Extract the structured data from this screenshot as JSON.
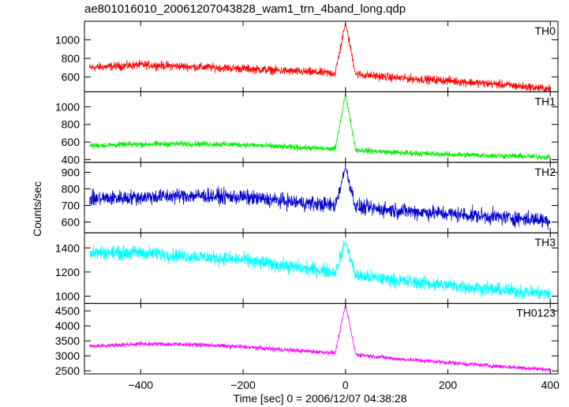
{
  "title": "ae801016010_20061207043828_wam1_trn_4band_long.qdp",
  "xlabel": "Time [sec] 0 = 2006/12/07 04:38:28",
  "ylabel": "Counts/sec",
  "chart_data": {
    "type": "line",
    "title": "ae801016010_20061207043828_wam1_trn_4band_long.qdp",
    "xlabel": "Time [sec] 0 = 2006/12/07 04:38:28",
    "ylabel": "Counts/sec",
    "xlim": [
      -510,
      415
    ],
    "xticks": [
      -400,
      -200,
      0,
      200,
      400
    ],
    "grid": false,
    "panels": [
      {
        "name": "TH0",
        "color": "#ff0000",
        "ylim": [
          440,
          1200
        ],
        "yticks": [
          600,
          800,
          1000
        ],
        "x": [
          -500,
          -400,
          -300,
          -200,
          -100,
          -20,
          0,
          20,
          100,
          200,
          300,
          400
        ],
        "y": [
          700,
          730,
          710,
          690,
          660,
          640,
          1180,
          630,
          590,
          560,
          520,
          470
        ],
        "noise": 35
      },
      {
        "name": "TH1",
        "color": "#00ee00",
        "ylim": [
          370,
          1170
        ],
        "yticks": [
          400,
          600,
          800,
          1000
        ],
        "x": [
          -500,
          -400,
          -300,
          -200,
          -100,
          -20,
          0,
          20,
          100,
          200,
          300,
          400
        ],
        "y": [
          560,
          575,
          580,
          570,
          540,
          520,
          1150,
          510,
          480,
          460,
          445,
          430
        ],
        "noise": 25
      },
      {
        "name": "TH2",
        "color": "#0000cc",
        "ylim": [
          535,
          960
        ],
        "yticks": [
          600,
          700,
          800,
          900
        ],
        "x": [
          -500,
          -400,
          -300,
          -200,
          -100,
          -20,
          0,
          20,
          100,
          200,
          300,
          400
        ],
        "y": [
          740,
          750,
          760,
          750,
          720,
          700,
          930,
          690,
          670,
          650,
          630,
          610
        ],
        "noise": 35
      },
      {
        "name": "TH3",
        "color": "#00ffff",
        "ylim": [
          940,
          1525
        ],
        "yticks": [
          1000,
          1200,
          1400
        ],
        "x": [
          -500,
          -400,
          -300,
          -200,
          -100,
          -20,
          0,
          20,
          100,
          200,
          300,
          400
        ],
        "y": [
          1360,
          1360,
          1330,
          1300,
          1240,
          1200,
          1450,
          1170,
          1130,
          1090,
          1050,
          1020
        ],
        "noise": 45
      },
      {
        "name": "TH0123",
        "color": "#ff00ff",
        "ylim": [
          2400,
          4750
        ],
        "yticks": [
          2500,
          3000,
          3500,
          4000,
          4500
        ],
        "x": [
          -500,
          -400,
          -300,
          -200,
          -100,
          -20,
          0,
          20,
          100,
          200,
          300,
          400
        ],
        "y": [
          3320,
          3400,
          3380,
          3300,
          3180,
          3100,
          4700,
          3050,
          2900,
          2780,
          2650,
          2540
        ],
        "noise": 55
      }
    ]
  }
}
